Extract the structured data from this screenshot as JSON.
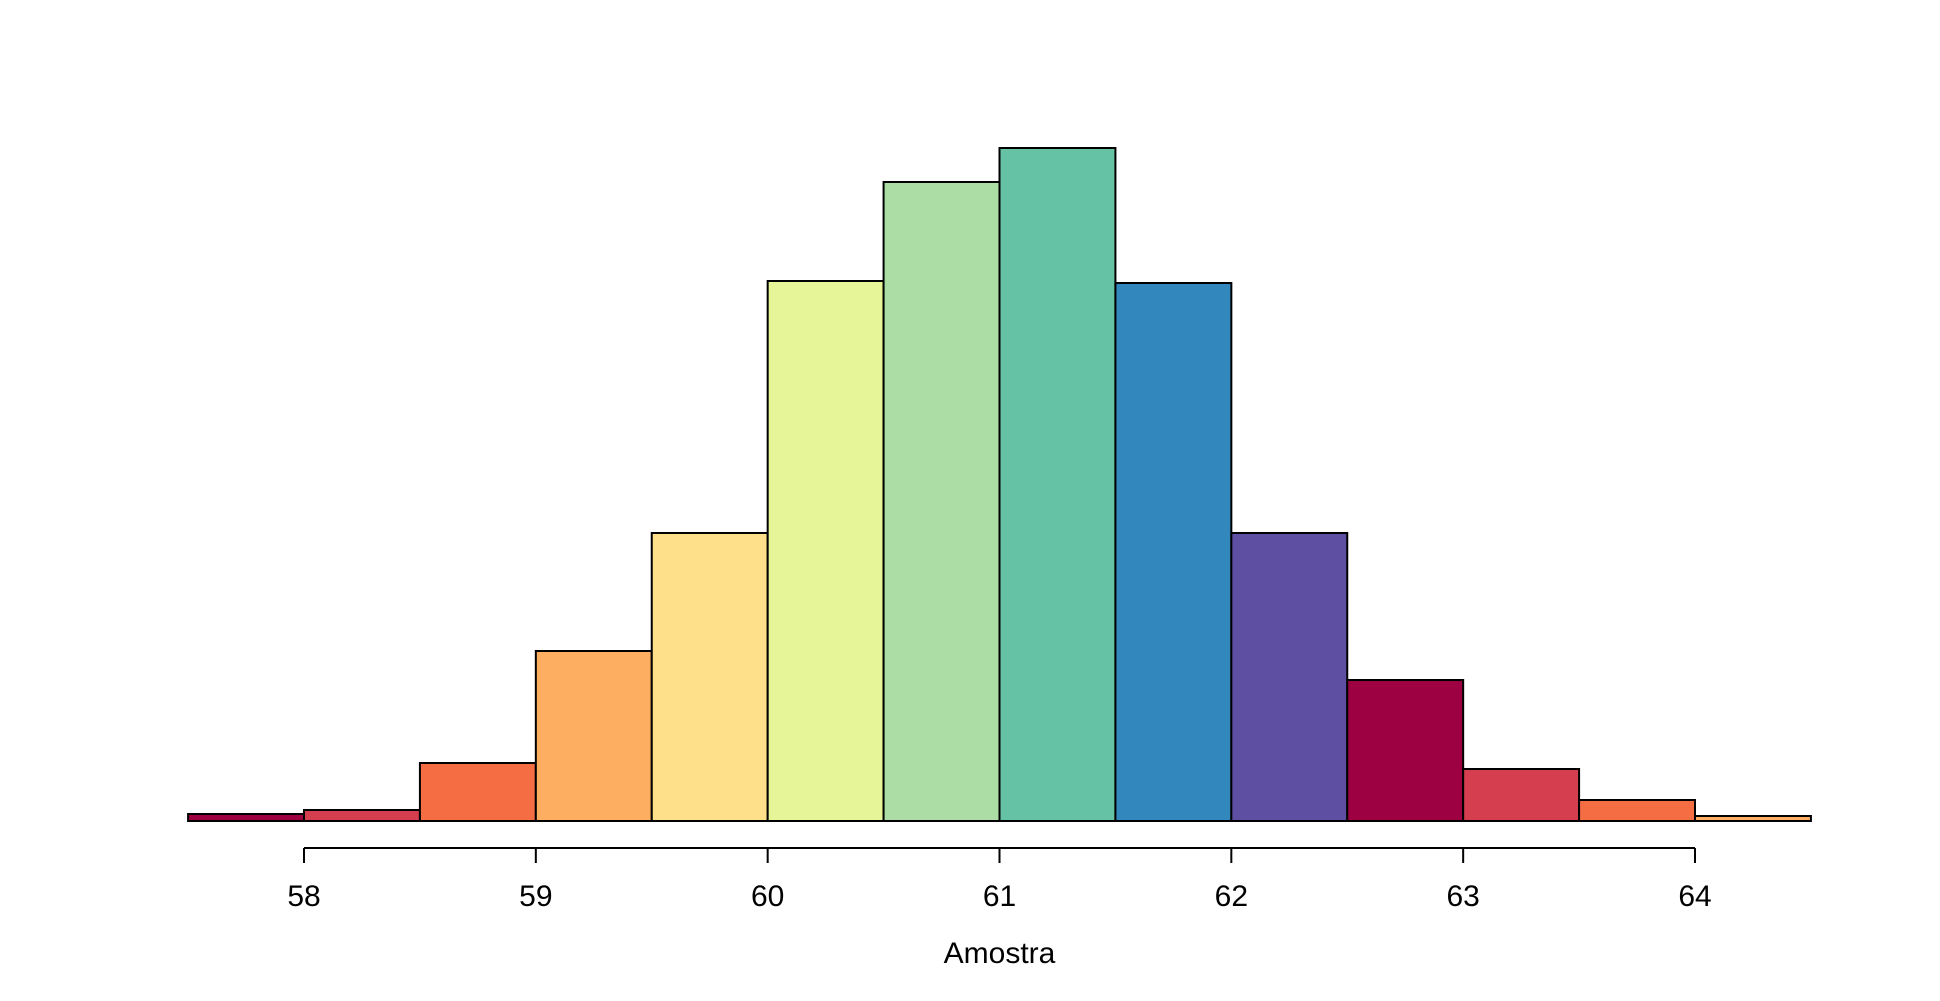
{
  "figure": {
    "background": "#ffffff",
    "text_color": "#000000"
  },
  "chart_data": {
    "type": "bar",
    "subtype": "histogram",
    "title": "",
    "xlabel": "Amostra",
    "ylabel": "",
    "x_ticks": [
      58,
      59,
      60,
      61,
      62,
      63,
      64
    ],
    "xlim": [
      57.5,
      64.5
    ],
    "bin_width": 0.5,
    "y_axis_shown": false,
    "grid": false,
    "legend": false,
    "note": "No y-axis drawn in figure; bin values are relative frequencies measured as bar pixel heights (proportional to counts).",
    "bar_border_color": "#000000",
    "palette_name": "Spectral-10, recycled over 14 bins",
    "palette": [
      "#9E0142",
      "#D53E4F",
      "#F46D43",
      "#FDAE61",
      "#FEE08B",
      "#E6F598",
      "#ABDDA4",
      "#66C2A5",
      "#3288BD",
      "#5E4FA2"
    ],
    "bins": [
      {
        "from": 57.5,
        "to": 58.0,
        "value": 7,
        "color": "#9E0142"
      },
      {
        "from": 58.0,
        "to": 58.5,
        "value": 11,
        "color": "#D53E4F"
      },
      {
        "from": 58.5,
        "to": 59.0,
        "value": 58,
        "color": "#F46D43"
      },
      {
        "from": 59.0,
        "to": 59.5,
        "value": 170,
        "color": "#FDAE61"
      },
      {
        "from": 59.5,
        "to": 60.0,
        "value": 288,
        "color": "#FEE08B"
      },
      {
        "from": 60.0,
        "to": 60.5,
        "value": 540,
        "color": "#E6F598"
      },
      {
        "from": 60.5,
        "to": 61.0,
        "value": 639,
        "color": "#ABDDA4"
      },
      {
        "from": 61.0,
        "to": 61.5,
        "value": 673,
        "color": "#66C2A5"
      },
      {
        "from": 61.5,
        "to": 62.0,
        "value": 538,
        "color": "#3288BD"
      },
      {
        "from": 62.0,
        "to": 62.5,
        "value": 288,
        "color": "#5E4FA2"
      },
      {
        "from": 62.5,
        "to": 63.0,
        "value": 141,
        "color": "#9E0142"
      },
      {
        "from": 63.0,
        "to": 63.5,
        "value": 52,
        "color": "#D53E4F"
      },
      {
        "from": 63.5,
        "to": 64.0,
        "value": 21,
        "color": "#F46D43"
      },
      {
        "from": 64.0,
        "to": 64.5,
        "value": 5,
        "color": "#FDAE61"
      }
    ]
  }
}
